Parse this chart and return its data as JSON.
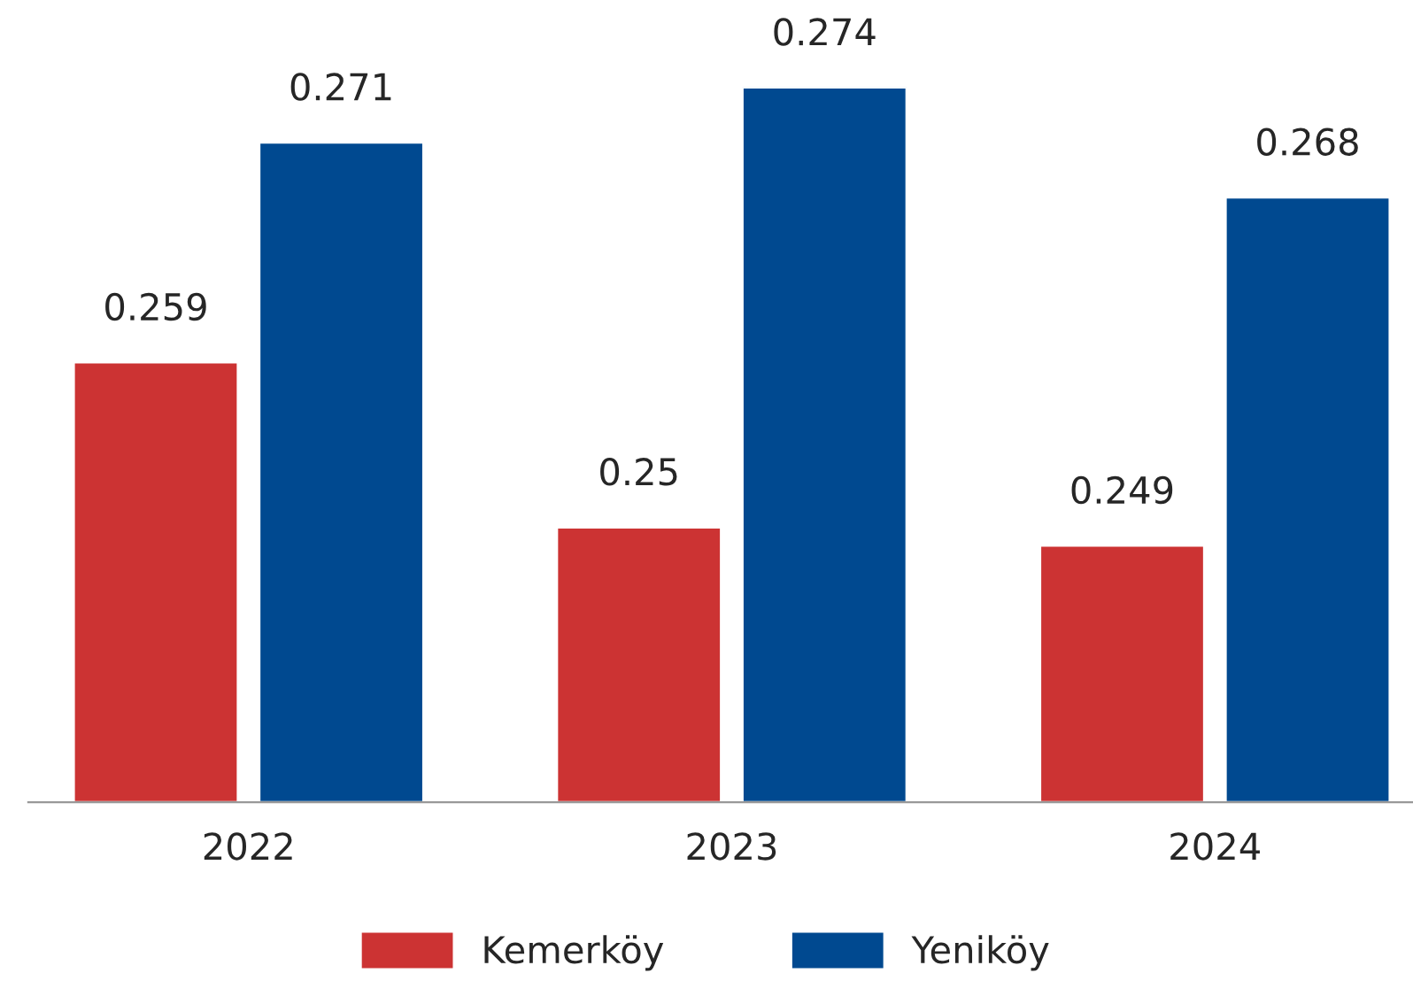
{
  "chart_data": {
    "type": "bar",
    "categories": [
      "2022",
      "2023",
      "2024"
    ],
    "series": [
      {
        "name": "Kemerköy",
        "color": "#cc3333",
        "values": [
          0.259,
          0.25,
          0.249
        ]
      },
      {
        "name": "Yeniköy",
        "color": "#004990",
        "values": [
          0.271,
          0.274,
          0.268
        ]
      }
    ],
    "ylim": [
      0.235,
      0.274
    ],
    "tick_labels": "x",
    "data_labels": true,
    "legend": "bottom",
    "grid": false
  }
}
